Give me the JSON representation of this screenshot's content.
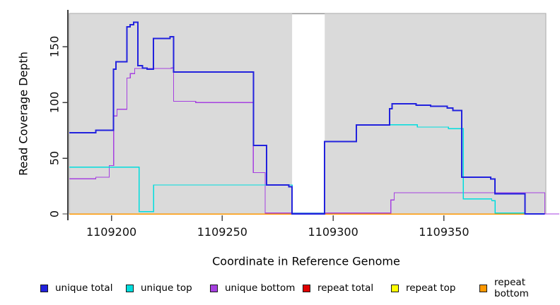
{
  "chart_data": {
    "type": "line",
    "subtype": "step",
    "title": "",
    "xlabel": "Coordinate in Reference Genome",
    "ylabel": "Read Coverage Depth",
    "xlim": [
      1109181,
      1109402
    ],
    "ylim": [
      0,
      180
    ],
    "x_ticks": [
      1109200,
      1109250,
      1109300,
      1109350
    ],
    "y_ticks": [
      0,
      50,
      100,
      150
    ],
    "grid": false,
    "legend_position": "bottom",
    "plot_bg": "#DADADA",
    "plot_border": "#ABABAB",
    "gap_band": {
      "x_start": 1109281.5,
      "x_end": 1109296.2,
      "color": "#FFFFFF",
      "top_border": "#979797"
    },
    "series": [
      {
        "name": "unique total",
        "color": "#2222DD",
        "line_width": 2,
        "steps": [
          [
            1109181,
            73
          ],
          [
            1109193,
            75
          ],
          [
            1109201,
            130
          ],
          [
            1109202,
            136.5
          ],
          [
            1109207,
            168
          ],
          [
            1109208.5,
            170
          ],
          [
            1109210,
            172
          ],
          [
            1109212,
            133
          ],
          [
            1109214,
            131
          ],
          [
            1109216,
            130
          ],
          [
            1109219,
            157.5
          ],
          [
            1109226.5,
            159
          ],
          [
            1109228,
            127.5
          ],
          [
            1109264,
            61.5
          ],
          [
            1109270,
            26
          ],
          [
            1109280,
            24.5
          ],
          [
            1109281.5,
            0
          ],
          [
            1109296.2,
            65
          ],
          [
            1109310.5,
            80
          ],
          [
            1109325.5,
            94.5
          ],
          [
            1109326.5,
            99
          ],
          [
            1109337.5,
            97.5
          ],
          [
            1109344,
            96.5
          ],
          [
            1109351.5,
            95
          ],
          [
            1109354,
            93
          ],
          [
            1109358,
            33
          ],
          [
            1109371,
            31.5
          ],
          [
            1109373,
            18
          ],
          [
            1109386.5,
            0
          ],
          [
            1109395.5,
            0
          ]
        ]
      },
      {
        "name": "unique top",
        "color": "#00DDDD",
        "line_width": 1.3,
        "steps": [
          [
            1109181,
            42
          ],
          [
            1109212.5,
            2
          ],
          [
            1109219,
            26
          ],
          [
            1109281.5,
            0.5
          ],
          [
            1109296.2,
            65
          ],
          [
            1109310.5,
            80
          ],
          [
            1109338,
            78
          ],
          [
            1109352,
            76.5
          ],
          [
            1109358.7,
            13.5
          ],
          [
            1109371.5,
            12
          ],
          [
            1109373,
            0.8
          ],
          [
            1109386.5,
            0.8
          ]
        ]
      },
      {
        "name": "unique bottom",
        "color": "#A640E0",
        "line_width": 1.2,
        "steps": [
          [
            1109181,
            31.5
          ],
          [
            1109193,
            33
          ],
          [
            1109199,
            43.5
          ],
          [
            1109201,
            88
          ],
          [
            1109202.5,
            94
          ],
          [
            1109207,
            122
          ],
          [
            1109208.5,
            126
          ],
          [
            1109210.5,
            130.5
          ],
          [
            1109227,
            131
          ],
          [
            1109228,
            101
          ],
          [
            1109238,
            100
          ],
          [
            1109264,
            37
          ],
          [
            1109269.3,
            0.8
          ],
          [
            1109326,
            12.5
          ],
          [
            1109327.5,
            19
          ],
          [
            1109395.5,
            0
          ],
          [
            1109402,
            0
          ]
        ]
      },
      {
        "name": "repeat total",
        "color": "#E00000",
        "line_width": 1.2,
        "steps": [
          [
            1109181,
            0
          ],
          [
            1109386.5,
            0
          ]
        ]
      },
      {
        "name": "repeat top",
        "color": "#FFFF00",
        "line_width": 1.2,
        "steps": [
          [
            1109181,
            0
          ],
          [
            1109386.5,
            0
          ]
        ]
      },
      {
        "name": "repeat bottom",
        "color": "#FF9800",
        "line_width": 1.5,
        "steps": [
          [
            1109181,
            0
          ],
          [
            1109386.5,
            0
          ]
        ]
      }
    ]
  }
}
